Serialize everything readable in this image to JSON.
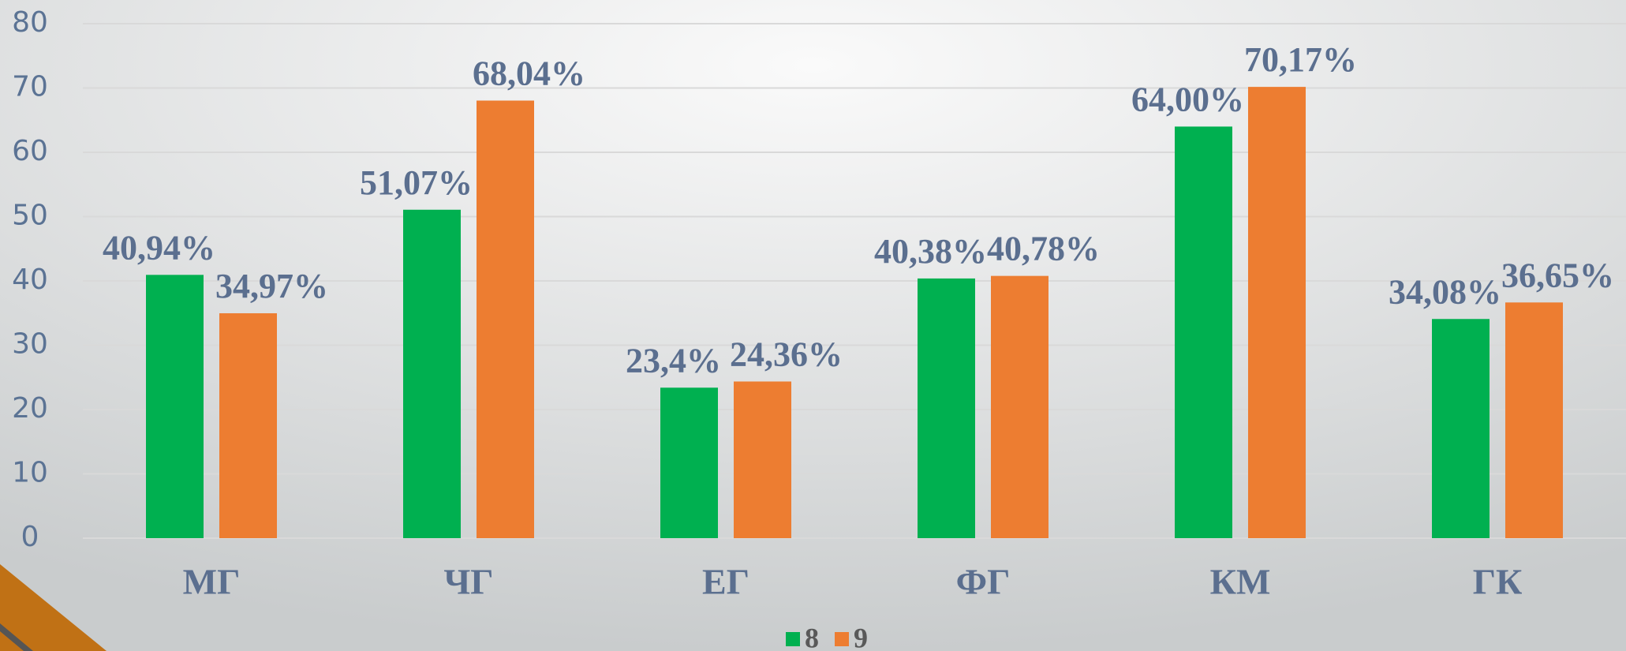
{
  "chart_data": {
    "type": "bar",
    "categories": [
      "МГ",
      "ЧГ",
      "ЕГ",
      "ФГ",
      "КМ",
      "ГК"
    ],
    "series": [
      {
        "name": "8",
        "color": "#00b050",
        "values": [
          40.94,
          51.07,
          23.4,
          40.38,
          64.0,
          34.08
        ],
        "value_labels": [
          "40,94%",
          "51,07%",
          "23,4%",
          "40,38%",
          "64,00%",
          "34,08%"
        ]
      },
      {
        "name": "9",
        "color": "#ed7d31",
        "values": [
          34.97,
          68.04,
          24.36,
          40.78,
          70.17,
          36.65
        ],
        "value_labels": [
          "34,97%",
          "68,04%",
          "24,36%",
          "40,78%",
          "70,17%",
          "36,65%"
        ]
      }
    ],
    "ylim": [
      0,
      80
    ],
    "yticks": [
      0,
      10,
      20,
      30,
      40,
      50,
      60,
      70,
      80
    ],
    "grid": true,
    "legend": "bottom"
  }
}
